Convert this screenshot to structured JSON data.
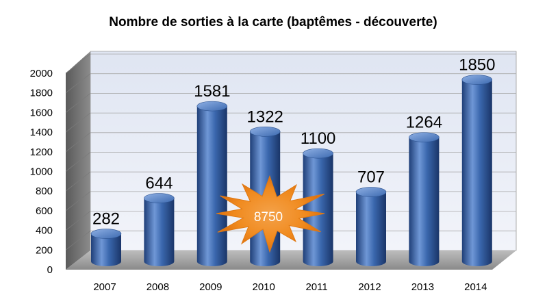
{
  "chart_data": {
    "type": "bar",
    "title": "Nombre de sorties à la carte (baptêmes - découverte)",
    "categories": [
      "2007",
      "2008",
      "2009",
      "2010",
      "2011",
      "2012",
      "2013",
      "2014"
    ],
    "values": [
      282,
      644,
      1581,
      1322,
      1100,
      707,
      1264,
      1850
    ],
    "yticks": [
      "0",
      "200",
      "400",
      "600",
      "800",
      "1000",
      "1200",
      "1400",
      "1600",
      "1800",
      "2000"
    ],
    "ylim": [
      0,
      2000
    ],
    "grid": true,
    "annotation": "8750",
    "colors": {
      "bar": "#3a67ad",
      "bar_dark": "#1f3f78",
      "bar_light": "#6f97d6",
      "wall": "#e6eaf4",
      "floor": "#9a9a9a",
      "star": "#f7941d"
    }
  }
}
